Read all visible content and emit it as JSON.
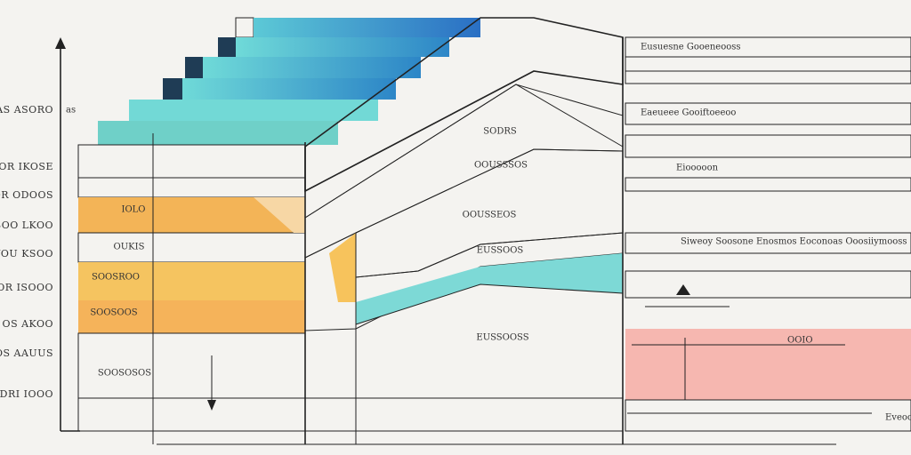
{
  "left_labels": [
    "IOAS ASORO",
    "DOR IKOSE",
    "SOR ODOOS",
    "SOO LKOO",
    "YOU KSOO",
    "OR ISOOO",
    "OS AKOO",
    "OS AAUUS",
    "DRI IOOO"
  ],
  "side_note": "as",
  "layer_labels": [
    "SODRS",
    "IOLO",
    "OUKIS",
    "SOOSROO",
    "OOUSSSOS",
    "OOUSSEOS",
    "SOOSOOS",
    "EUSSOOS",
    "SOOSOSOS",
    "EUSSOOSS"
  ],
  "right_labels": [
    "Eusuesne Gooeneooss",
    "Eaeueee Gooiftoeeoo",
    "Eiooooon",
    "Siweoy Soosone Enosmos Eoconoas Ooosiiymooss",
    "OOIO",
    "Eveoo"
  ]
}
